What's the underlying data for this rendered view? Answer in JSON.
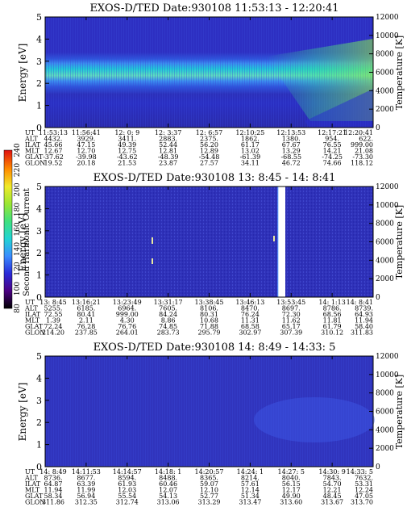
{
  "colorbar": {
    "label": "Second Harmonic Current",
    "ticks": [
      "80",
      "100",
      "120",
      "140",
      "160",
      "180",
      "200",
      "220",
      "240"
    ],
    "colors": [
      "#000000",
      "#4b0082",
      "#2a2ad8",
      "#3a8cff",
      "#22d4d4",
      "#3fe07f",
      "#9ae634",
      "#f0ea2a",
      "#ff8c00",
      "#e01010"
    ]
  },
  "ephemeris_labels": [
    "UT",
    "ALT",
    "ILAT",
    "MLT",
    "GLAT",
    "GLON"
  ],
  "panels": [
    {
      "title": "EXOS-D/TED   Date:930108   11:53:13 - 12:20:41",
      "ylabel_left": "Energy [eV]",
      "ylabel_right": "Temperature [K]",
      "yticks_left": [
        "0",
        "1",
        "2",
        "3",
        "4",
        "5"
      ],
      "yticks_right": [
        "0",
        "2000",
        "4000",
        "6000",
        "8000",
        "10000",
        "12000"
      ],
      "ut": [
        "11:53:13",
        "11:56:41",
        "12: 0: 9",
        "12: 3:37",
        "12: 6:57",
        "12:10:25",
        "12:13:53",
        "12:17:21",
        "12:20:41"
      ],
      "alt": [
        "4432.",
        "3929.",
        "3411.",
        "2883.",
        "2375.",
        "1862.",
        "1380.",
        "954.",
        "622."
      ],
      "ilat": [
        "45.66",
        "47.15",
        "49.39",
        "52.44",
        "56.20",
        "61.17",
        "67.67",
        "76.55",
        "999.00"
      ],
      "mlt": [
        "12.67",
        "12.70",
        "12.75",
        "12.81",
        "12.89",
        "13.02",
        "13.29",
        "14.21",
        "21.08"
      ],
      "glat": [
        "-37.62",
        "-39.98",
        "-43.62",
        "-48.39",
        "-54.48",
        "-61.39",
        "-68.55",
        "-74.25",
        "-73.30"
      ],
      "glon": [
        "19.52",
        "20.18",
        "21.53",
        "23.87",
        "27.57",
        "34.11",
        "46.72",
        "74.66",
        "118.12"
      ],
      "chart_data": {
        "type": "heatmap",
        "x": [
          "11:53:13",
          "11:56:41",
          "12: 0: 9",
          "12: 3:37",
          "12: 6:57",
          "12:10:25",
          "12:13:53",
          "12:17:21",
          "12:20:41"
        ],
        "ylim": [
          0,
          5
        ],
        "y2lim": [
          0,
          12000
        ],
        "bands": [
          {
            "energy_range": [
              2.5,
              3.0
            ],
            "level": "cyan-green"
          },
          {
            "energy_range": [
              2.0,
              2.5
            ],
            "level": "light-blue"
          },
          {
            "energy_range": [
              1.5,
              2.0
            ],
            "level": "blue"
          }
        ]
      }
    },
    {
      "title": "EXOS-D/TED   Date:930108   13: 8:45 - 14: 8:41",
      "ylabel_left": "Energy [eV]",
      "ylabel_right": "Temperature [K]",
      "yticks_left": [
        "0",
        "1",
        "2",
        "3",
        "4",
        "5"
      ],
      "yticks_right": [
        "0",
        "2000",
        "4000",
        "6000",
        "8000",
        "10000",
        "12000"
      ],
      "ut": [
        "13: 8:45",
        "13:16:21",
        "13:23:49",
        "13:31:17",
        "13:38:45",
        "13:46:13",
        "13:53:45",
        "14: 1:13",
        "14: 8:41"
      ],
      "alt": [
        "5255.",
        "6185.",
        "6964.",
        "7605.",
        "8106.",
        "8470.",
        "8697.",
        "8786.",
        "8739."
      ],
      "ilat": [
        "72.55",
        "80.41",
        "999.00",
        "84.24",
        "80.31",
        "76.24",
        "72.30",
        "68.56",
        "64.93"
      ],
      "mlt": [
        "1.39",
        "2.11",
        "4.30",
        "8.86",
        "10.68",
        "11.31",
        "11.62",
        "11.81",
        "11.94"
      ],
      "glat": [
        "72.24",
        "76.28",
        "76.76",
        "74.85",
        "71.88",
        "68.58",
        "65.17",
        "61.79",
        "58.40"
      ],
      "glon": [
        "214.20",
        "237.85",
        "264.01",
        "283.73",
        "295.79",
        "302.97",
        "307.39",
        "310.12",
        "311.83"
      ],
      "chart_data": {
        "type": "heatmap",
        "x": [
          "13: 8:45",
          "13:16:21",
          "13:23:49",
          "13:31:17",
          "13:38:45",
          "13:46:13",
          "13:53:45",
          "14: 1:13",
          "14: 8:41"
        ],
        "ylim": [
          0,
          5
        ],
        "y2lim": [
          0,
          12000
        ],
        "data_gap_after": "13:46:13"
      }
    },
    {
      "title": "EXOS-D/TED   Date:930108   14: 8:49 - 14:33: 5",
      "ylabel_left": "Energy [eV]",
      "ylabel_right": "Temperature [K]",
      "yticks_left": [
        "0",
        "1",
        "2",
        "3",
        "4",
        "5"
      ],
      "yticks_right": [
        "0",
        "2000",
        "4000",
        "6000",
        "8000",
        "10000",
        "12000"
      ],
      "ut": [
        "14: 8:49",
        "14:11:53",
        "14:14:57",
        "14:18: 1",
        "14:20:57",
        "14:24: 1",
        "14:27: 5",
        "14:30: 9",
        "14:33: 5"
      ],
      "alt": [
        "8736.",
        "8677.",
        "8594.",
        "8488.",
        "8365.",
        "8214.",
        "8040.",
        "7843.",
        "7632."
      ],
      "ilat": [
        "64.87",
        "63.39",
        "61.93",
        "60.46",
        "59.07",
        "57.61",
        "56.15",
        "54.70",
        "53.31"
      ],
      "mlt": [
        "11.94",
        "11.99",
        "12.03",
        "12.07",
        "12.10",
        "12.14",
        "12.17",
        "12.21",
        "12.24"
      ],
      "glat": [
        "58.34",
        "56.94",
        "55.54",
        "54.13",
        "52.77",
        "51.34",
        "49.90",
        "48.45",
        "47.05"
      ],
      "glon": [
        "311.86",
        "312.35",
        "312.74",
        "313.06",
        "313.29",
        "313.47",
        "313.60",
        "313.67",
        "313.70"
      ],
      "chart_data": {
        "type": "heatmap",
        "x": [
          "14: 8:49",
          "14:11:53",
          "14:14:57",
          "14:18: 1",
          "14:20:57",
          "14:24: 1",
          "14:27: 5",
          "14:30: 9",
          "14:33: 5"
        ],
        "ylim": [
          0,
          5
        ],
        "y2lim": [
          0,
          12000
        ]
      }
    }
  ]
}
